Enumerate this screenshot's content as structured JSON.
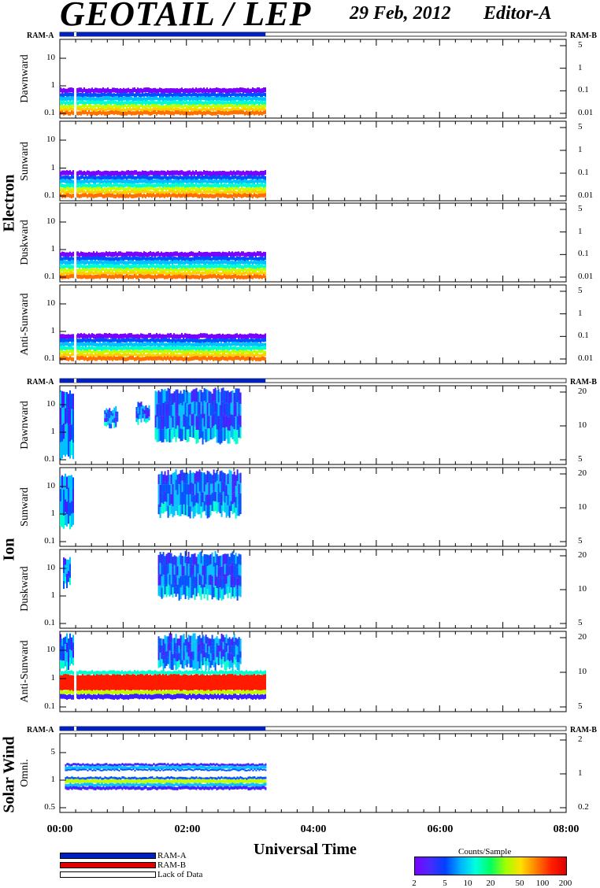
{
  "header": {
    "title": "GEOTAIL / LEP",
    "date": "29 Feb, 2012",
    "editor": "Editor-A"
  },
  "groups": [
    {
      "key": "electron",
      "label": "Electron"
    },
    {
      "key": "ion",
      "label": "Ion"
    },
    {
      "key": "solar",
      "label": "Solar Wind"
    }
  ],
  "ram": {
    "a": "RAM-A",
    "b": "RAM-B"
  },
  "legend": {
    "ram_a": "RAM-A",
    "ram_b": "RAM-B",
    "lack": "Lack of Data",
    "colors": {
      "ram_a": "#0020c0",
      "ram_b": "#e00000",
      "lack": "#ffffff"
    }
  },
  "colorbar": {
    "title": "Counts/Sample",
    "ticks": [
      "2",
      "5",
      "10",
      "20",
      "50",
      "100",
      "200"
    ]
  },
  "chart_data": {
    "type": "heatmap",
    "xlabel": "Universal Time",
    "x_ticks": [
      "00:00",
      "02:00",
      "04:00",
      "06:00",
      "08:00"
    ],
    "x_range_hours": [
      0,
      8
    ],
    "data_end_hours": 3.25,
    "ram_a_coverage_hours": [
      0,
      3.25
    ],
    "panels": [
      {
        "group": "electron",
        "label": "Dawnward",
        "left_ticks": [
          "10",
          "1",
          "0.1"
        ],
        "right_ticks": [
          "5",
          "1",
          "0.1",
          "0.01"
        ]
      },
      {
        "group": "electron",
        "label": "Sunward",
        "left_ticks": [
          "10",
          "1",
          "0.1"
        ],
        "right_ticks": [
          "5",
          "1",
          "0.1",
          "0.01"
        ]
      },
      {
        "group": "electron",
        "label": "Duskward",
        "left_ticks": [
          "10",
          "1",
          "0.1"
        ],
        "right_ticks": [
          "5",
          "1",
          "0.1",
          "0.01"
        ]
      },
      {
        "group": "electron",
        "label": "Anti-Sunward",
        "left_ticks": [
          "10",
          "1",
          "0.1"
        ],
        "right_ticks": [
          "5",
          "1",
          "0.1",
          "0.01"
        ]
      },
      {
        "group": "ion",
        "label": "Dawnward",
        "left_ticks": [
          "10",
          "1",
          "0.1"
        ],
        "right_ticks": [
          "20",
          "10",
          "5"
        ]
      },
      {
        "group": "ion",
        "label": "Sunward",
        "left_ticks": [
          "10",
          "1",
          "0.1"
        ],
        "right_ticks": [
          "20",
          "10",
          "5"
        ]
      },
      {
        "group": "ion",
        "label": "Duskward",
        "left_ticks": [
          "10",
          "1",
          "0.1"
        ],
        "right_ticks": [
          "20",
          "10",
          "5"
        ]
      },
      {
        "group": "ion",
        "label": "Anti-Sunward",
        "left_ticks": [
          "10",
          "1",
          "0.1"
        ],
        "right_ticks": [
          "20",
          "10",
          "5"
        ]
      },
      {
        "group": "solar",
        "label": "Omni.",
        "left_ticks": [
          "5",
          "1",
          "0.5"
        ],
        "right_ticks": [
          "2",
          "1",
          "0.2"
        ]
      }
    ]
  }
}
